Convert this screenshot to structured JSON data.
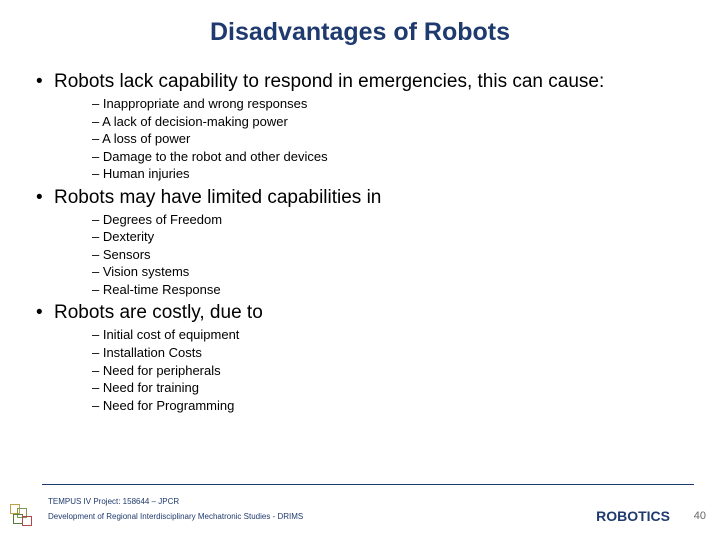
{
  "title": "Disadvantages of Robots",
  "title_color": "#1f3a6e",
  "title_fontsize": 25,
  "bullet_fontsize": 19,
  "sub_fontsize": 13,
  "bullets": [
    {
      "text": "Robots lack capability to respond in emergencies, this can cause:",
      "subs": [
        "Inappropriate and wrong responses",
        "A lack of decision-making power",
        "A loss of power",
        "Damage to the robot and other devices",
        "Human injuries"
      ]
    },
    {
      "text": "Robots may have limited capabilities in",
      "subs": [
        "Degrees of Freedom",
        "Dexterity",
        "Sensors",
        "Vision systems",
        "Real-time Response"
      ]
    },
    {
      "text": "Robots are costly, due to",
      "subs": [
        "Initial cost of equipment",
        "Installation Costs",
        "Need for peripherals",
        "Need for training",
        "Need for Programming"
      ]
    }
  ],
  "footer": {
    "line1": "TEMPUS IV Project: 158644 – JPCR",
    "line2": "Development of Regional Interdisciplinary Mechatronic Studies - DRIMS",
    "right_label": "ROBOTICS",
    "page_number": "40",
    "line_color": "#1f3a6e",
    "text_color": "#1f3a6e",
    "logo_colors": [
      "#c0a048",
      "#7a9a5a",
      "#5a7a3a",
      "#b04848"
    ]
  },
  "background_color": "#ffffff"
}
